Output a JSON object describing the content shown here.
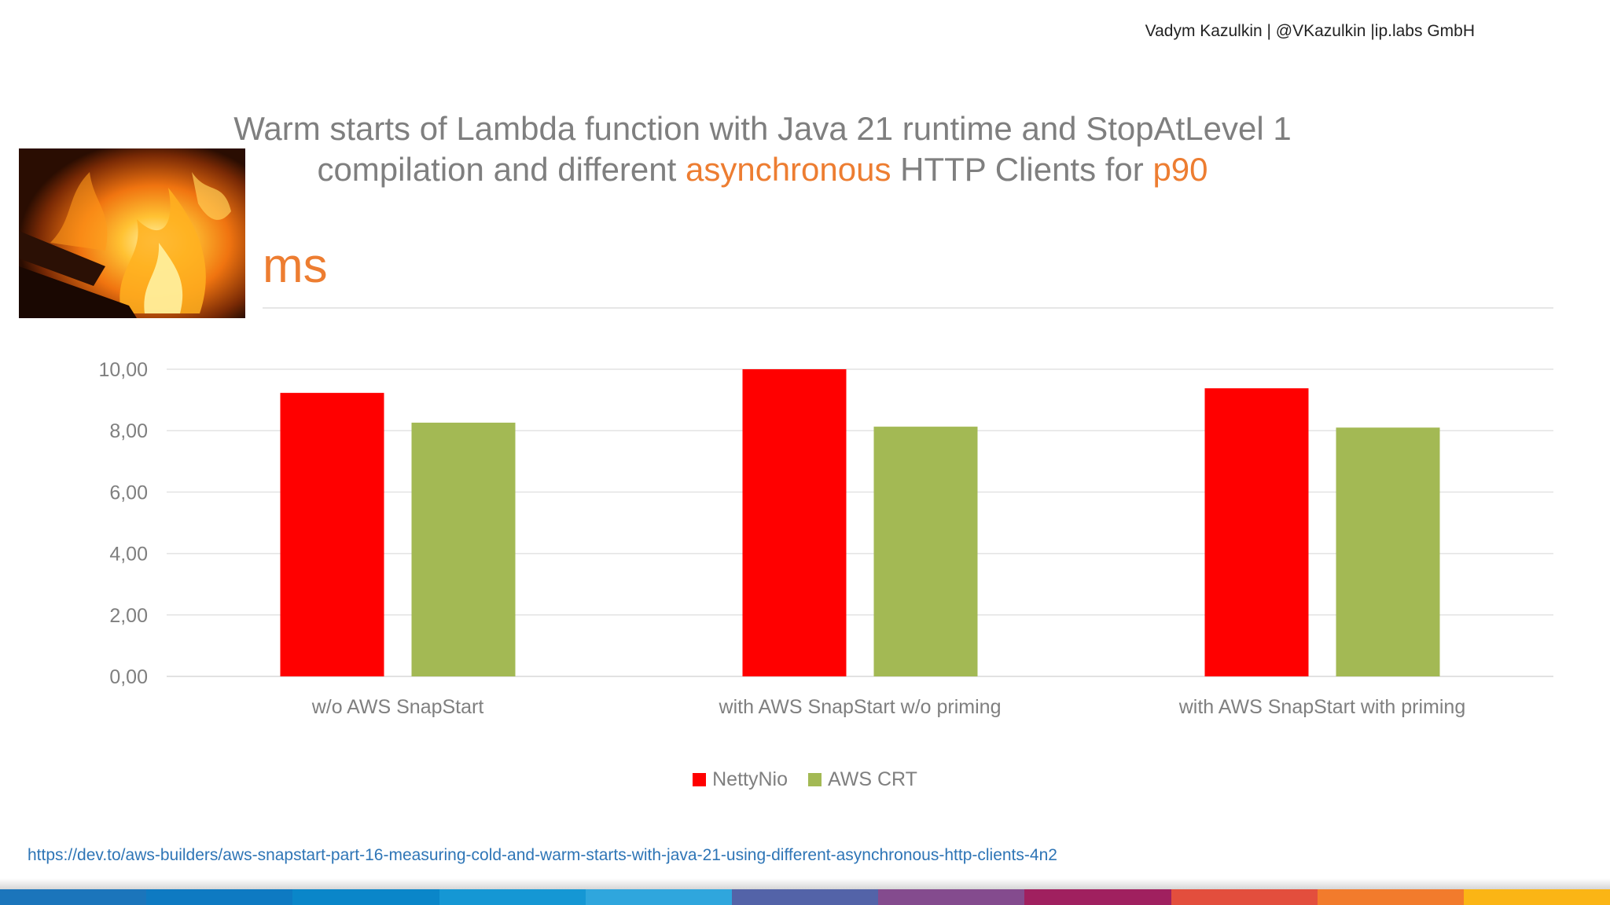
{
  "header": {
    "author": "Vadym Kazulkin | @VKazulkin |ip.labs GmbH"
  },
  "title": {
    "line1": "Warm starts of Lambda function with Java 21 runtime and StopAtLevel 1",
    "line2_a": "compilation and different ",
    "line2_highlight": "asynchronous",
    "line2_b": " HTTP Clients for ",
    "line2_highlight2": "p90"
  },
  "unit_label": "ms",
  "chart_data": {
    "type": "bar",
    "title": "Warm starts of Lambda function with Java 21 runtime and StopAtLevel 1 compilation and different asynchronous HTTP Clients for p90",
    "ylabel": "ms",
    "xlabel": "",
    "categories": [
      "w/o AWS SnapStart",
      "with AWS SnapStart w/o priming",
      "with AWS SnapStart with priming"
    ],
    "series": [
      {
        "name": "NettyNio",
        "color": "#ff0000",
        "values": [
          9.23,
          10.0,
          9.38
        ]
      },
      {
        "name": "AWS CRT",
        "color": "#a3b954",
        "values": [
          8.26,
          8.13,
          8.1
        ]
      }
    ],
    "ylim": [
      0,
      10
    ],
    "yticks": [
      "0,00",
      "2,00",
      "4,00",
      "6,00",
      "8,00",
      "10,00"
    ],
    "ytick_values": [
      0,
      2,
      4,
      6,
      8,
      10
    ],
    "grid": true,
    "legend_position": "bottom-center"
  },
  "footer": {
    "link": "https://dev.to/aws-builders/aws-snapstart-part-16-measuring-cold-and-warm-starts-with-java-21-using-different-asynchronous-http-clients-4n2"
  },
  "colors": {
    "accent": "#ed7d31",
    "title_gray": "#7f7f7f",
    "stripe": [
      "#1b75bb",
      "#0e7ac2",
      "#0a86c9",
      "#1597d4",
      "#2fa6dd",
      "#5363a8",
      "#844b8e",
      "#a0205f",
      "#e34e3d",
      "#f27b2c",
      "#fbb515"
    ]
  }
}
